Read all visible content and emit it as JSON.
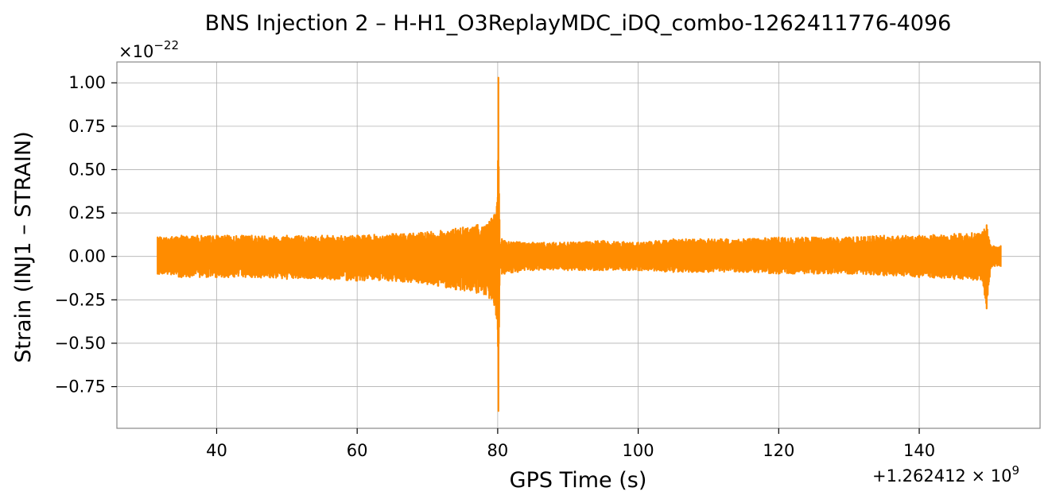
{
  "chart_data": {
    "type": "line",
    "title": "BNS Injection 2 – H-H1_O3ReplayMDC_iDQ_combo-1262411776-4096",
    "xlabel": "GPS Time (s)",
    "ylabel": "Strain (INJ1 – STRAIN)",
    "x_offset_label": "+1.262412 × 10",
    "x_offset_exponent": "9",
    "y_multiplier_label": "×10",
    "y_multiplier_exponent": "−22",
    "xlim": [
      25.8,
      157.2
    ],
    "ylim": [
      -0.99,
      1.12
    ],
    "x_ticks": [
      40,
      60,
      80,
      100,
      120,
      140
    ],
    "x_tick_labels": [
      "40",
      "60",
      "80",
      "100",
      "120",
      "140"
    ],
    "y_ticks": [
      1.0,
      0.75,
      0.5,
      0.25,
      0.0,
      -0.25,
      -0.5,
      -0.75
    ],
    "y_tick_labels": [
      "1.00",
      "0.75",
      "0.50",
      "0.25",
      "0.00",
      "−0.25",
      "−0.50",
      "−0.75"
    ],
    "grid": true,
    "legend": "none",
    "series": [
      {
        "color": "#ff8c00",
        "envelope": {
          "x": [
            31.6,
            35,
            40,
            45,
            50,
            55,
            60,
            65,
            70,
            74,
            77,
            78.8,
            79.5,
            80.0,
            80.1,
            80.3,
            80.6,
            81,
            85,
            90,
            95,
            100,
            105,
            110,
            115,
            120,
            125,
            130,
            135,
            140,
            145,
            149,
            149.6,
            150.2,
            151.6
          ],
          "upper": [
            0.11,
            0.12,
            0.12,
            0.12,
            0.12,
            0.12,
            0.12,
            0.13,
            0.14,
            0.16,
            0.18,
            0.2,
            0.24,
            0.34,
            1.03,
            0.05,
            0.1,
            0.09,
            0.08,
            0.08,
            0.09,
            0.08,
            0.1,
            0.1,
            0.1,
            0.11,
            0.11,
            0.11,
            0.12,
            0.12,
            0.13,
            0.14,
            0.18,
            0.06,
            0.06
          ],
          "lower": [
            -0.1,
            -0.12,
            -0.12,
            -0.12,
            -0.13,
            -0.13,
            -0.14,
            -0.14,
            -0.16,
            -0.19,
            -0.21,
            -0.24,
            -0.28,
            -0.42,
            -0.89,
            -0.06,
            -0.1,
            -0.1,
            -0.08,
            -0.08,
            -0.08,
            -0.08,
            -0.09,
            -0.09,
            -0.09,
            -0.1,
            -0.1,
            -0.1,
            -0.11,
            -0.12,
            -0.13,
            -0.14,
            -0.3,
            -0.06,
            -0.06
          ]
        }
      }
    ]
  }
}
